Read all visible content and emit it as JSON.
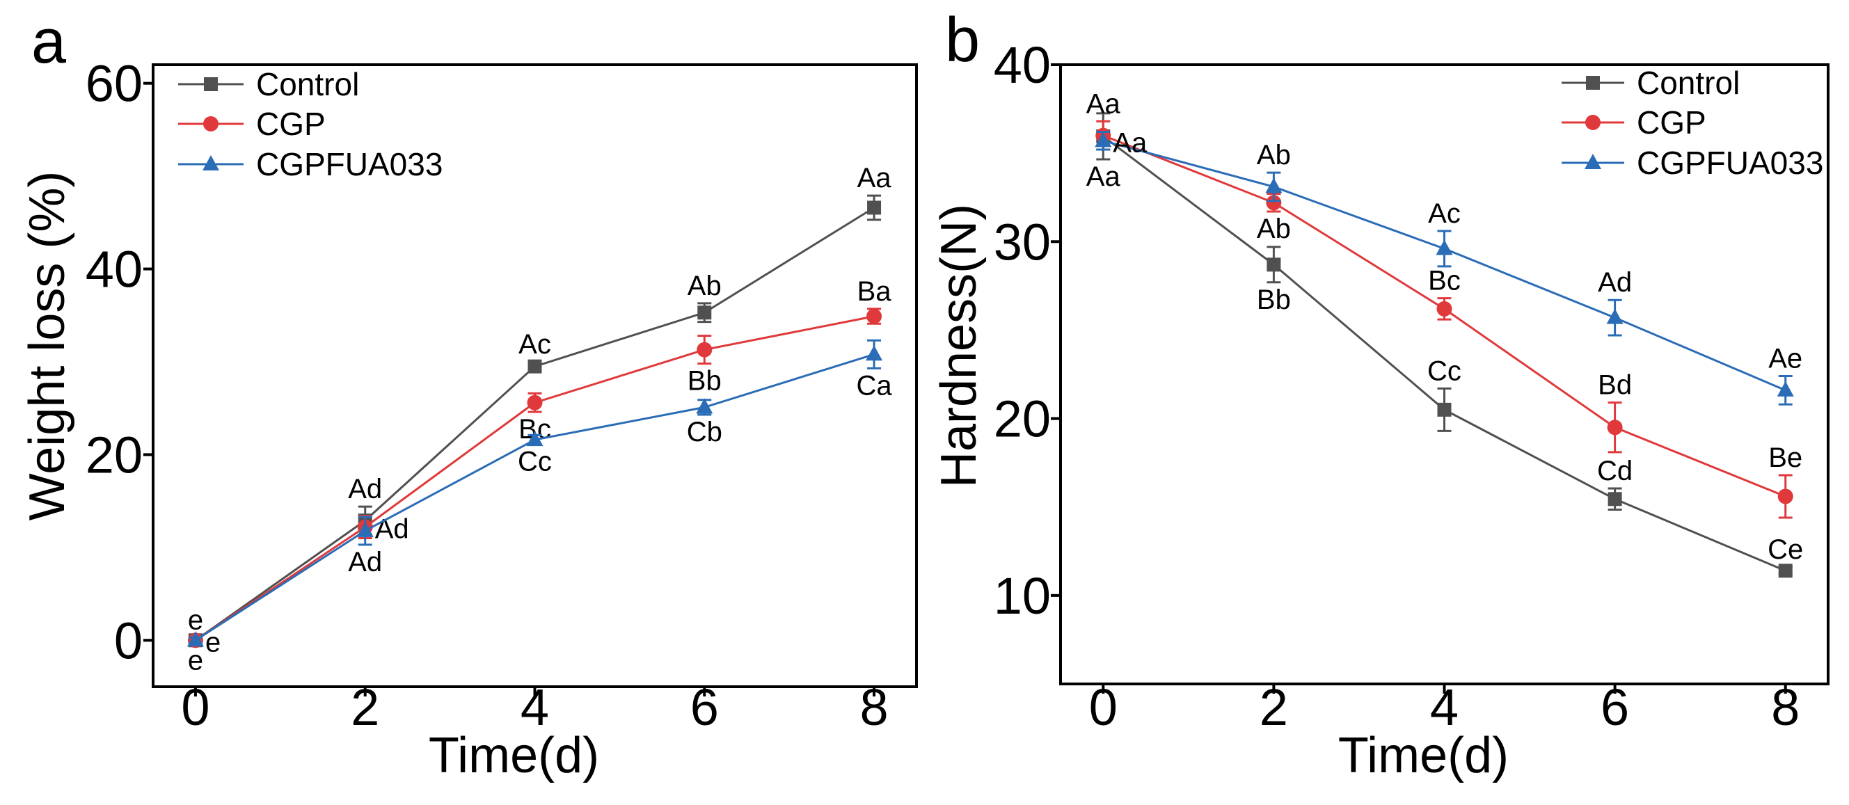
{
  "colors": {
    "Control": "#505050",
    "CGP": "#e0393b",
    "CGPFUA033": "#2a6cb6",
    "axis": "#000000"
  },
  "chart_data": [
    {
      "panel_label": "a",
      "type": "line",
      "xlabel": "Time(d)",
      "ylabel": "Weight loss (%)",
      "xlim": [
        -0.5,
        8.5
      ],
      "ylim": [
        -5,
        62
      ],
      "xticks": [
        0,
        2,
        4,
        6,
        8
      ],
      "yticks": [
        0,
        20,
        40,
        60
      ],
      "grid": false,
      "legend_position": "top-left",
      "x": [
        0,
        2,
        4,
        6,
        8
      ],
      "series": [
        {
          "name": "Control",
          "marker": "square",
          "values": [
            0,
            12.9,
            29.5,
            35.3,
            46.6
          ],
          "errors": [
            0.3,
            1.5,
            0.5,
            1.0,
            1.3
          ],
          "labels": [
            {
              "text": "e",
              "pos": "above"
            },
            {
              "text": "Ad",
              "pos": "above"
            },
            {
              "text": "Ac",
              "pos": "above"
            },
            {
              "text": "Ab",
              "pos": "above"
            },
            {
              "text": "Aa",
              "pos": "above"
            }
          ]
        },
        {
          "name": "CGP",
          "marker": "circle",
          "values": [
            0,
            12.2,
            25.6,
            31.3,
            34.9
          ],
          "errors": [
            0.3,
            1.2,
            1.0,
            1.5,
            0.8
          ],
          "labels": [
            {
              "text": "e",
              "pos": "right"
            },
            {
              "text": "Ad",
              "pos": "right"
            },
            {
              "text": "Bc",
              "pos": "below"
            },
            {
              "text": "Bb",
              "pos": "below"
            },
            {
              "text": "Ba",
              "pos": "above"
            }
          ]
        },
        {
          "name": "CGPFUA033",
          "marker": "triangle",
          "values": [
            0,
            11.8,
            21.6,
            25.1,
            30.8
          ],
          "errors": [
            0.3,
            1.5,
            0.5,
            0.8,
            1.5
          ],
          "labels": [
            {
              "text": "e",
              "pos": "below"
            },
            {
              "text": "Ad",
              "pos": "below"
            },
            {
              "text": "Cc",
              "pos": "below"
            },
            {
              "text": "Cb",
              "pos": "below"
            },
            {
              "text": "Ca",
              "pos": "below"
            }
          ]
        }
      ]
    },
    {
      "panel_label": "b",
      "type": "line",
      "xlabel": "Time(d)",
      "ylabel": "Hardness(N)",
      "xlim": [
        -0.5,
        8.5
      ],
      "ylim": [
        5,
        40
      ],
      "xticks": [
        0,
        2,
        4,
        6,
        8
      ],
      "yticks": [
        10,
        20,
        30,
        40
      ],
      "grid": false,
      "legend_position": "top-right",
      "x": [
        0,
        2,
        4,
        6,
        8
      ],
      "series": [
        {
          "name": "Control",
          "marker": "square",
          "values": [
            35.95,
            28.7,
            20.5,
            15.45,
            11.4
          ],
          "errors": [
            1.3,
            1.0,
            1.2,
            0.6,
            0.2
          ],
          "labels": [
            {
              "text": "Aa",
              "pos": "below"
            },
            {
              "text": "Bb",
              "pos": "below"
            },
            {
              "text": "Cc",
              "pos": "above"
            },
            {
              "text": "Cd",
              "pos": "above"
            },
            {
              "text": "Ce",
              "pos": "above"
            }
          ]
        },
        {
          "name": "CGP",
          "marker": "circle",
          "values": [
            36.0,
            32.2,
            26.2,
            19.5,
            15.6
          ],
          "errors": [
            0.8,
            0.5,
            0.6,
            1.4,
            1.2
          ],
          "labels": [
            {
              "text": "Aa",
              "pos": "above"
            },
            {
              "text": "Ab",
              "pos": "below"
            },
            {
              "text": "Bc",
              "pos": "above"
            },
            {
              "text": "Bd",
              "pos": "above"
            },
            {
              "text": "Be",
              "pos": "above"
            }
          ]
        },
        {
          "name": "CGPFUA033",
          "marker": "triangle",
          "values": [
            35.7,
            33.1,
            29.6,
            25.7,
            21.6
          ],
          "errors": [
            0.5,
            0.8,
            1.0,
            1.0,
            0.8
          ],
          "labels": [
            {
              "text": "Aa",
              "pos": "right"
            },
            {
              "text": "Ab",
              "pos": "above"
            },
            {
              "text": "Ac",
              "pos": "above"
            },
            {
              "text": "Ad",
              "pos": "above"
            },
            {
              "text": "Ae",
              "pos": "above"
            }
          ]
        }
      ]
    }
  ]
}
